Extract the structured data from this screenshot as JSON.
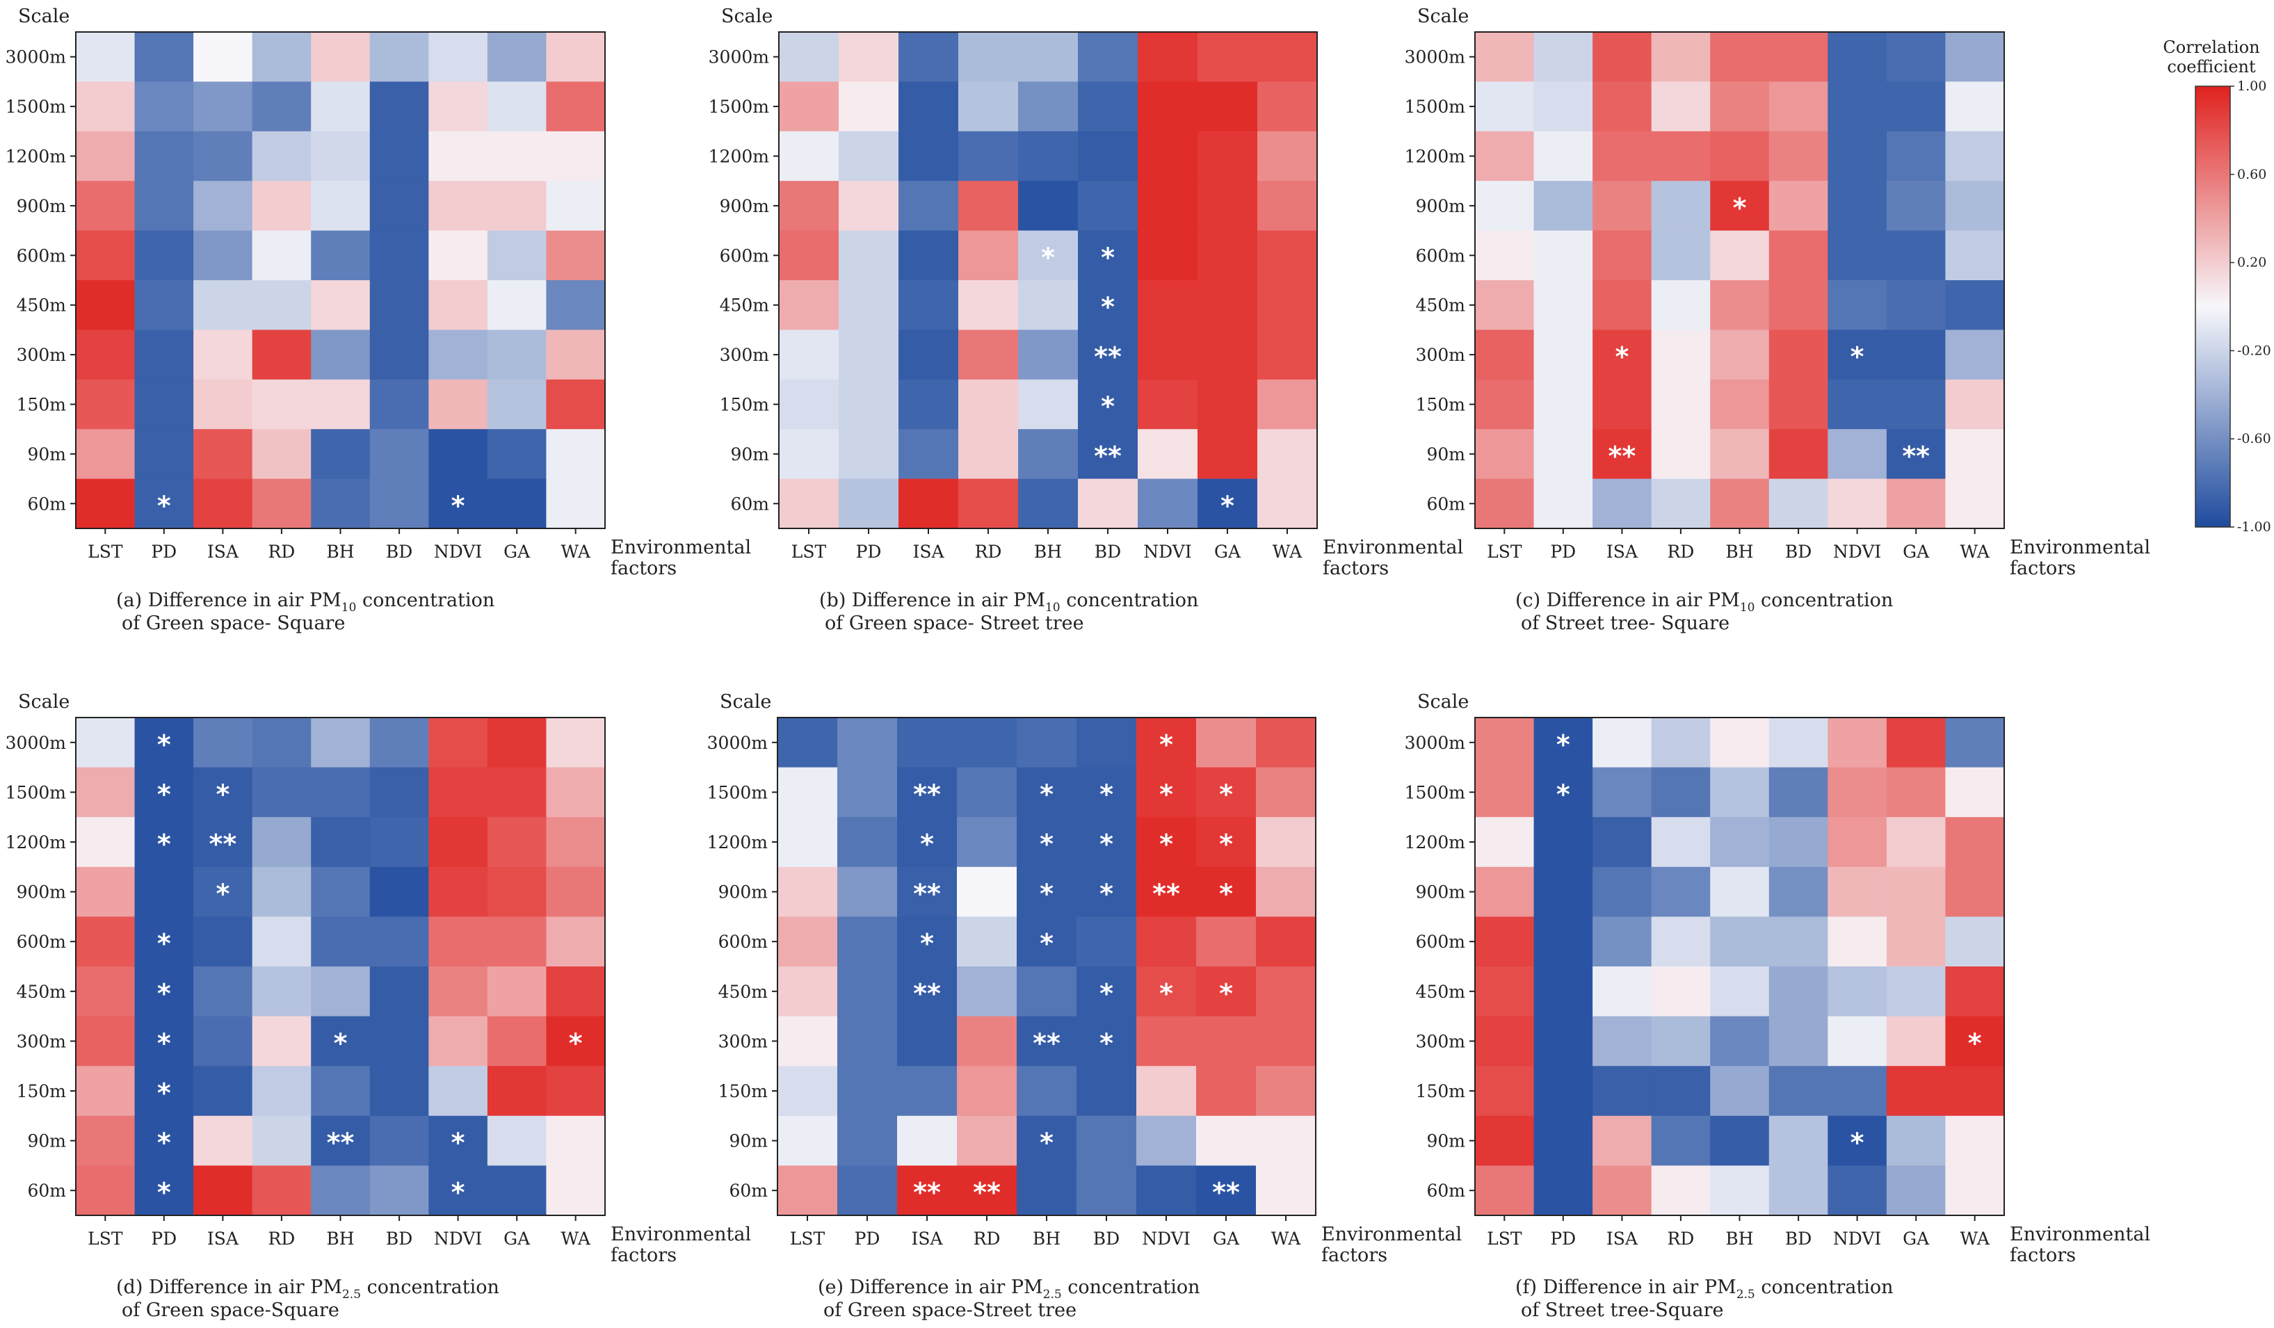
{
  "colorbar": {
    "title_line1": "Correlation",
    "title_line2": "coefficient",
    "ticks": [
      "1.00",
      "0.60",
      "0.20",
      "-0.20",
      "-0.60",
      "-1.00"
    ],
    "tick_values": [
      1.0,
      0.6,
      0.2,
      -0.2,
      -0.6,
      -1.0
    ],
    "colors": {
      "high": "#e0221f",
      "mid": "#f7f7fb",
      "low": "#1f4b9e"
    }
  },
  "chart_data": [
    {
      "type": "heatmap",
      "id": "a",
      "ylabel": "Scale",
      "xlabel_line1": "Environmental",
      "xlabel_line2": "factors",
      "caption_pre": "(a) Difference in air PM",
      "caption_sub": "10",
      "caption_post": " concentration",
      "caption_line2": "of Green space- Square",
      "x_categories": [
        "LST",
        "PD",
        "ISA",
        "RD",
        "BH",
        "BD",
        "NDVI",
        "GA",
        "WA"
      ],
      "y_categories": [
        "3000m",
        "1500m",
        "1200m",
        "900m",
        "600m",
        "450m",
        "300m",
        "150m",
        "90m",
        "60m"
      ],
      "values": [
        [
          -0.1,
          -0.75,
          0.0,
          -0.35,
          0.2,
          -0.35,
          -0.15,
          -0.45,
          0.2
        ],
        [
          0.2,
          -0.65,
          -0.55,
          -0.7,
          -0.12,
          -0.88,
          0.15,
          -0.12,
          0.65
        ],
        [
          0.35,
          -0.75,
          -0.7,
          -0.25,
          -0.18,
          -0.88,
          0.05,
          0.05,
          0.05
        ],
        [
          0.65,
          -0.75,
          -0.4,
          0.2,
          -0.12,
          -0.88,
          0.2,
          0.2,
          -0.05
        ],
        [
          0.8,
          -0.85,
          -0.55,
          -0.05,
          -0.7,
          -0.88,
          0.05,
          -0.25,
          0.5
        ],
        [
          0.95,
          -0.8,
          -0.2,
          -0.2,
          0.15,
          -0.88,
          0.2,
          -0.05,
          -0.65
        ],
        [
          0.85,
          -0.88,
          0.15,
          0.85,
          -0.55,
          -0.88,
          -0.4,
          -0.35,
          0.3
        ],
        [
          0.75,
          -0.88,
          0.2,
          0.15,
          0.15,
          -0.8,
          0.3,
          -0.3,
          0.8
        ],
        [
          0.45,
          -0.88,
          0.75,
          0.25,
          -0.85,
          -0.7,
          -0.95,
          -0.85,
          -0.05
        ],
        [
          0.95,
          -0.88,
          0.85,
          0.6,
          -0.8,
          -0.7,
          -0.95,
          -0.95,
          -0.05
        ]
      ],
      "significance": [
        [
          9,
          1,
          "*"
        ],
        [
          9,
          6,
          "*"
        ]
      ]
    },
    {
      "type": "heatmap",
      "id": "b",
      "ylabel": "Scale",
      "xlabel_line1": "Environmental",
      "xlabel_line2": "factors",
      "caption_pre": "(b) Difference in air PM",
      "caption_sub": "10",
      "caption_post": " concentration",
      "caption_line2": "of Green space- Street tree",
      "x_categories": [
        "LST",
        "PD",
        "ISA",
        "RD",
        "BH",
        "BD",
        "NDVI",
        "GA",
        "WA"
      ],
      "y_categories": [
        "3000m",
        "1500m",
        "1200m",
        "900m",
        "600m",
        "450m",
        "300m",
        "150m",
        "90m",
        "60m"
      ],
      "values": [
        [
          -0.2,
          0.15,
          -0.8,
          -0.35,
          -0.35,
          -0.75,
          0.9,
          0.8,
          0.8
        ],
        [
          0.4,
          0.05,
          -0.9,
          -0.3,
          -0.6,
          -0.85,
          0.95,
          0.95,
          0.7
        ],
        [
          -0.05,
          -0.2,
          -0.9,
          -0.8,
          -0.85,
          -0.9,
          0.95,
          0.9,
          0.5
        ],
        [
          0.6,
          0.15,
          -0.75,
          0.7,
          -0.95,
          -0.85,
          0.95,
          0.9,
          0.6
        ],
        [
          0.65,
          -0.2,
          -0.9,
          0.45,
          -0.25,
          -0.9,
          0.95,
          0.9,
          0.8
        ],
        [
          0.35,
          -0.2,
          -0.85,
          0.15,
          -0.2,
          -0.9,
          0.9,
          0.9,
          0.8
        ],
        [
          -0.1,
          -0.2,
          -0.9,
          0.6,
          -0.55,
          -0.9,
          0.9,
          0.9,
          0.8
        ],
        [
          -0.15,
          -0.2,
          -0.85,
          0.2,
          -0.15,
          -0.9,
          0.85,
          0.9,
          0.45
        ],
        [
          -0.1,
          -0.2,
          -0.75,
          0.2,
          -0.7,
          -0.9,
          0.1,
          0.9,
          0.15
        ],
        [
          0.2,
          -0.3,
          0.95,
          0.8,
          -0.85,
          0.15,
          -0.65,
          -0.95,
          0.15
        ]
      ],
      "significance": [
        [
          4,
          4,
          "*"
        ],
        [
          4,
          5,
          "*"
        ],
        [
          5,
          5,
          "*"
        ],
        [
          6,
          5,
          "**"
        ],
        [
          7,
          5,
          "*"
        ],
        [
          8,
          5,
          "**"
        ],
        [
          9,
          7,
          "*"
        ]
      ]
    },
    {
      "type": "heatmap",
      "id": "c",
      "ylabel": "Scale",
      "xlabel_line1": "Environmental",
      "xlabel_line2": "factors",
      "caption_pre": "(c) Difference in air PM",
      "caption_sub": "10",
      "caption_post": " concentration",
      "caption_line2": "of Street tree- Square",
      "x_categories": [
        "LST",
        "PD",
        "ISA",
        "RD",
        "BH",
        "BD",
        "NDVI",
        "GA",
        "WA"
      ],
      "y_categories": [
        "3000m",
        "1500m",
        "1200m",
        "900m",
        "600m",
        "450m",
        "300m",
        "150m",
        "90m",
        "60m"
      ],
      "values": [
        [
          0.3,
          -0.2,
          0.75,
          0.3,
          0.65,
          0.65,
          -0.85,
          -0.8,
          -0.45
        ],
        [
          -0.1,
          -0.15,
          0.7,
          0.15,
          0.55,
          0.45,
          -0.85,
          -0.85,
          -0.05
        ],
        [
          0.35,
          -0.05,
          0.65,
          0.65,
          0.7,
          0.55,
          -0.85,
          -0.75,
          -0.25
        ],
        [
          -0.05,
          -0.35,
          0.55,
          -0.3,
          0.9,
          0.4,
          -0.85,
          -0.7,
          -0.35
        ],
        [
          0.05,
          -0.05,
          0.65,
          -0.3,
          0.15,
          0.65,
          -0.85,
          -0.85,
          -0.25
        ],
        [
          0.35,
          -0.05,
          0.7,
          -0.05,
          0.5,
          0.65,
          -0.75,
          -0.8,
          -0.85
        ],
        [
          0.7,
          -0.05,
          0.85,
          0.05,
          0.35,
          0.75,
          -0.9,
          -0.9,
          -0.4
        ],
        [
          0.65,
          -0.05,
          0.85,
          0.05,
          0.45,
          0.75,
          -0.85,
          -0.85,
          0.2
        ],
        [
          0.45,
          -0.05,
          0.9,
          0.05,
          0.3,
          0.85,
          -0.4,
          -0.9,
          0.05
        ],
        [
          0.6,
          -0.05,
          -0.4,
          -0.2,
          0.55,
          -0.2,
          0.15,
          0.4,
          0.05
        ]
      ],
      "significance": [
        [
          3,
          4,
          "*"
        ],
        [
          6,
          2,
          "*"
        ],
        [
          6,
          6,
          "*"
        ],
        [
          8,
          2,
          "**"
        ],
        [
          8,
          7,
          "**"
        ]
      ]
    },
    {
      "type": "heatmap",
      "id": "d",
      "ylabel": "Scale",
      "xlabel_line1": "Environmental",
      "xlabel_line2": "factors",
      "caption_pre": "(d) Difference in air PM",
      "caption_sub": "2.5",
      "caption_post": " concentration",
      "caption_line2": "of Green space-Square",
      "x_categories": [
        "LST",
        "PD",
        "ISA",
        "RD",
        "BH",
        "BD",
        "NDVI",
        "GA",
        "WA"
      ],
      "y_categories": [
        "3000m",
        "1500m",
        "1200m",
        "900m",
        "600m",
        "450m",
        "300m",
        "150m",
        "90m",
        "60m"
      ],
      "values": [
        [
          -0.1,
          -0.95,
          -0.7,
          -0.75,
          -0.4,
          -0.7,
          0.8,
          0.9,
          0.15
        ],
        [
          0.35,
          -0.95,
          -0.9,
          -0.8,
          -0.8,
          -0.88,
          0.85,
          0.85,
          0.35
        ],
        [
          0.05,
          -0.95,
          -0.9,
          -0.45,
          -0.88,
          -0.85,
          0.9,
          0.75,
          0.5
        ],
        [
          0.4,
          -0.95,
          -0.85,
          -0.35,
          -0.75,
          -0.95,
          0.85,
          0.8,
          0.6
        ],
        [
          0.75,
          -0.95,
          -0.9,
          -0.15,
          -0.8,
          -0.8,
          0.65,
          0.65,
          0.35
        ],
        [
          0.65,
          -0.95,
          -0.75,
          -0.3,
          -0.4,
          -0.9,
          0.55,
          0.4,
          0.85
        ],
        [
          0.7,
          -0.95,
          -0.8,
          0.15,
          -0.9,
          -0.9,
          0.35,
          0.65,
          0.95
        ],
        [
          0.4,
          -0.95,
          -0.9,
          -0.25,
          -0.75,
          -0.9,
          -0.25,
          0.9,
          0.85
        ],
        [
          0.6,
          -0.95,
          0.15,
          -0.2,
          -0.9,
          -0.8,
          -0.9,
          -0.15,
          0.05
        ],
        [
          0.65,
          -0.95,
          0.95,
          0.75,
          -0.65,
          -0.55,
          -0.9,
          -0.9,
          0.05
        ]
      ],
      "significance": [
        [
          0,
          1,
          "*"
        ],
        [
          1,
          1,
          "*"
        ],
        [
          1,
          2,
          "*"
        ],
        [
          2,
          1,
          "*"
        ],
        [
          2,
          2,
          "**"
        ],
        [
          3,
          2,
          "*"
        ],
        [
          4,
          1,
          "*"
        ],
        [
          5,
          1,
          "*"
        ],
        [
          6,
          1,
          "*"
        ],
        [
          6,
          4,
          "*"
        ],
        [
          6,
          8,
          "*"
        ],
        [
          7,
          1,
          "*"
        ],
        [
          8,
          1,
          "*"
        ],
        [
          8,
          4,
          "**"
        ],
        [
          8,
          6,
          "*"
        ],
        [
          9,
          1,
          "*"
        ],
        [
          9,
          6,
          "*"
        ]
      ]
    },
    {
      "type": "heatmap",
      "id": "e",
      "ylabel": "Scale",
      "xlabel_line1": "Environmental",
      "xlabel_line2": "factors",
      "caption_pre": "(e) Difference in air PM",
      "caption_sub": "2.5",
      "caption_post": " concentration",
      "caption_line2": "of Green space-Street tree",
      "x_categories": [
        "LST",
        "PD",
        "ISA",
        "RD",
        "BH",
        "BD",
        "NDVI",
        "GA",
        "WA"
      ],
      "y_categories": [
        "3000m",
        "1500m",
        "1200m",
        "900m",
        "600m",
        "450m",
        "300m",
        "150m",
        "90m",
        "60m"
      ],
      "values": [
        [
          -0.85,
          -0.65,
          -0.85,
          -0.85,
          -0.8,
          -0.88,
          0.9,
          0.5,
          0.75
        ],
        [
          -0.05,
          -0.65,
          -0.9,
          -0.75,
          -0.9,
          -0.9,
          0.9,
          0.85,
          0.55
        ],
        [
          -0.05,
          -0.75,
          -0.9,
          -0.65,
          -0.9,
          -0.9,
          0.95,
          0.9,
          0.2
        ],
        [
          0.2,
          -0.55,
          -0.88,
          0.0,
          -0.9,
          -0.9,
          0.95,
          0.95,
          0.35
        ],
        [
          0.35,
          -0.75,
          -0.9,
          -0.2,
          -0.9,
          -0.85,
          0.85,
          0.65,
          0.85
        ],
        [
          0.2,
          -0.75,
          -0.9,
          -0.4,
          -0.75,
          -0.9,
          0.8,
          0.85,
          0.7
        ],
        [
          0.05,
          -0.75,
          -0.9,
          0.55,
          -0.9,
          -0.9,
          0.7,
          0.7,
          0.7
        ],
        [
          -0.15,
          -0.75,
          -0.75,
          0.45,
          -0.75,
          -0.9,
          0.2,
          0.7,
          0.55
        ],
        [
          -0.05,
          -0.75,
          -0.05,
          0.35,
          -0.9,
          -0.75,
          -0.4,
          0.05,
          0.05
        ],
        [
          0.45,
          -0.8,
          0.95,
          0.95,
          -0.9,
          -0.75,
          -0.9,
          -0.95,
          0.05
        ]
      ],
      "significance": [
        [
          0,
          6,
          "*"
        ],
        [
          1,
          2,
          "**"
        ],
        [
          1,
          4,
          "*"
        ],
        [
          1,
          5,
          "*"
        ],
        [
          1,
          6,
          "*"
        ],
        [
          1,
          7,
          "*"
        ],
        [
          2,
          2,
          "*"
        ],
        [
          2,
          4,
          "*"
        ],
        [
          2,
          5,
          "*"
        ],
        [
          2,
          6,
          "*"
        ],
        [
          2,
          7,
          "*"
        ],
        [
          3,
          2,
          "**"
        ],
        [
          3,
          4,
          "*"
        ],
        [
          3,
          5,
          "*"
        ],
        [
          3,
          6,
          "**"
        ],
        [
          3,
          7,
          "*"
        ],
        [
          4,
          2,
          "*"
        ],
        [
          4,
          4,
          "*"
        ],
        [
          5,
          2,
          "**"
        ],
        [
          5,
          5,
          "*"
        ],
        [
          5,
          6,
          "*"
        ],
        [
          5,
          7,
          "*"
        ],
        [
          6,
          4,
          "**"
        ],
        [
          6,
          5,
          "*"
        ],
        [
          8,
          4,
          "*"
        ],
        [
          9,
          2,
          "**"
        ],
        [
          9,
          3,
          "**"
        ],
        [
          9,
          7,
          "**"
        ]
      ]
    },
    {
      "type": "heatmap",
      "id": "f",
      "ylabel": "Scale",
      "xlabel_line1": "Environmental",
      "xlabel_line2": "factors",
      "caption_pre": "(f) Difference in air PM",
      "caption_sub": "2.5",
      "caption_post": " concentration",
      "caption_line2": "of Street tree-Square",
      "x_categories": [
        "LST",
        "PD",
        "ISA",
        "RD",
        "BH",
        "BD",
        "NDVI",
        "GA",
        "WA"
      ],
      "y_categories": [
        "3000m",
        "1500m",
        "1200m",
        "900m",
        "600m",
        "450m",
        "300m",
        "150m",
        "90m",
        "60m"
      ],
      "values": [
        [
          0.55,
          -0.95,
          -0.05,
          -0.25,
          0.05,
          -0.15,
          0.4,
          0.85,
          -0.7
        ],
        [
          0.55,
          -0.95,
          -0.65,
          -0.75,
          -0.3,
          -0.7,
          0.5,
          0.55,
          0.05
        ],
        [
          0.05,
          -0.95,
          -0.88,
          -0.15,
          -0.4,
          -0.45,
          0.45,
          0.2,
          0.6
        ],
        [
          0.45,
          -0.95,
          -0.75,
          -0.65,
          -0.1,
          -0.6,
          0.3,
          0.3,
          0.6
        ],
        [
          0.85,
          -0.95,
          -0.6,
          -0.15,
          -0.35,
          -0.35,
          0.05,
          0.3,
          -0.2
        ],
        [
          0.8,
          -0.95,
          -0.05,
          0.05,
          -0.15,
          -0.45,
          -0.3,
          -0.25,
          0.85
        ],
        [
          0.85,
          -0.95,
          -0.4,
          -0.35,
          -0.65,
          -0.45,
          -0.05,
          0.2,
          0.95
        ],
        [
          0.8,
          -0.95,
          -0.88,
          -0.88,
          -0.45,
          -0.75,
          -0.75,
          0.9,
          0.9
        ],
        [
          0.9,
          -0.95,
          0.35,
          -0.75,
          -0.9,
          -0.3,
          -0.95,
          -0.35,
          0.05
        ],
        [
          0.6,
          -0.95,
          0.5,
          0.05,
          -0.1,
          -0.3,
          -0.85,
          -0.45,
          0.05
        ]
      ],
      "significance": [
        [
          0,
          1,
          "*"
        ],
        [
          1,
          1,
          "*"
        ],
        [
          6,
          8,
          "*"
        ],
        [
          8,
          6,
          "*"
        ]
      ]
    }
  ]
}
